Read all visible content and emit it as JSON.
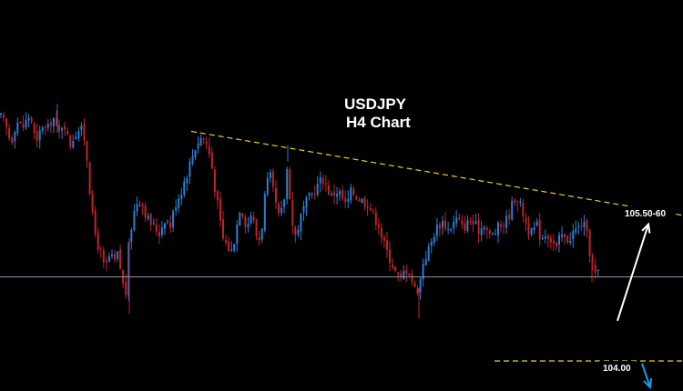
{
  "chart_data": {
    "type": "candlestick",
    "title": "USDJPY",
    "subtitle": "H4 Chart",
    "symbol": "USDJPY",
    "timeframe": "H4",
    "background": "#000000",
    "colors": {
      "up_candle": "#2a7fd4",
      "down_candle": "#c0232b",
      "trendline": "#e6d21e",
      "support_line": "#e6d21e",
      "current_price_line": "#8a96a8",
      "projection_arrow_up": "#ffffff",
      "projection_arrow_down": "#1e9be6",
      "label_background": "#000000"
    },
    "grid": false,
    "y_range": [
      103.75,
      106.4
    ],
    "current_price": 104.67,
    "close_path": [
      [
        0,
        105.95
      ],
      [
        6,
        105.88
      ],
      [
        12,
        105.74
      ],
      [
        18,
        105.92
      ],
      [
        25,
        105.86
      ],
      [
        33,
        105.97
      ],
      [
        40,
        105.71
      ],
      [
        46,
        105.89
      ],
      [
        52,
        105.83
      ],
      [
        58,
        105.96
      ],
      [
        64,
        105.79
      ],
      [
        70,
        105.93
      ],
      [
        76,
        105.71
      ],
      [
        82,
        105.81
      ],
      [
        88,
        105.86
      ],
      [
        94,
        105.75
      ],
      [
        98,
        105.42
      ],
      [
        102,
        105.12
      ],
      [
        106,
        104.96
      ],
      [
        110,
        104.88
      ],
      [
        115,
        104.72
      ],
      [
        120,
        104.83
      ],
      [
        126,
        104.79
      ],
      [
        130,
        104.86
      ],
      [
        134,
        104.64
      ],
      [
        138,
        104.52
      ],
      [
        142,
        104.98
      ],
      [
        147,
        105.18
      ],
      [
        152,
        105.31
      ],
      [
        157,
        105.24
      ],
      [
        163,
        105.12
      ],
      [
        169,
        105.07
      ],
      [
        175,
        105.02
      ],
      [
        181,
        105.14
      ],
      [
        187,
        105.08
      ],
      [
        193,
        105.26
      ],
      [
        199,
        105.36
      ],
      [
        205,
        105.49
      ],
      [
        210,
        105.61
      ],
      [
        216,
        105.74
      ],
      [
        222,
        105.79
      ],
      [
        228,
        105.71
      ],
      [
        232,
        105.58
      ],
      [
        236,
        105.38
      ],
      [
        240,
        105.19
      ],
      [
        244,
        104.99
      ],
      [
        249,
        104.92
      ],
      [
        254,
        104.87
      ],
      [
        259,
        105.03
      ],
      [
        263,
        105.23
      ],
      [
        267,
        105.18
      ],
      [
        271,
        105.06
      ],
      [
        276,
        105.19
      ],
      [
        281,
        105.01
      ],
      [
        286,
        104.96
      ],
      [
        291,
        105.33
      ],
      [
        296,
        105.49
      ],
      [
        301,
        105.31
      ],
      [
        306,
        105.14
      ],
      [
        311,
        105.22
      ],
      [
        316,
        105.59
      ],
      [
        320,
        105.12
      ],
      [
        324,
        104.99
      ],
      [
        328,
        105.09
      ],
      [
        333,
        105.21
      ],
      [
        338,
        105.28
      ],
      [
        343,
        105.33
      ],
      [
        348,
        105.39
      ],
      [
        354,
        105.46
      ],
      [
        359,
        105.39
      ],
      [
        364,
        105.31
      ],
      [
        369,
        105.36
      ],
      [
        374,
        105.33
      ],
      [
        380,
        105.23
      ],
      [
        386,
        105.36
      ],
      [
        392,
        105.31
      ],
      [
        398,
        105.28
      ],
      [
        404,
        105.26
      ],
      [
        410,
        105.16
      ],
      [
        416,
        105.09
      ],
      [
        420,
        104.96
      ],
      [
        425,
        104.87
      ],
      [
        430,
        104.79
      ],
      [
        435,
        104.69
      ],
      [
        440,
        104.64
      ],
      [
        445,
        104.74
      ],
      [
        450,
        104.71
      ],
      [
        455,
        104.57
      ],
      [
        460,
        104.58
      ],
      [
        465,
        104.81
      ],
      [
        469,
        104.86
      ],
      [
        473,
        104.93
      ],
      [
        477,
        105.03
      ],
      [
        482,
        105.09
      ],
      [
        487,
        105.11
      ],
      [
        492,
        105.05
      ],
      [
        497,
        105.09
      ],
      [
        502,
        105.14
      ],
      [
        507,
        105.06
      ],
      [
        512,
        105.09
      ],
      [
        517,
        105.12
      ],
      [
        522,
        105.07
      ],
      [
        527,
        105.04
      ],
      [
        532,
        105.11
      ],
      [
        537,
        104.99
      ],
      [
        542,
        105.01
      ],
      [
        547,
        105.06
      ],
      [
        552,
        105.09
      ],
      [
        557,
        105.13
      ],
      [
        562,
        105.24
      ],
      [
        566,
        105.31
      ],
      [
        570,
        105.26
      ],
      [
        574,
        105.19
      ],
      [
        579,
        105.06
      ],
      [
        584,
        105.01
      ],
      [
        589,
        105.09
      ],
      [
        594,
        104.98
      ],
      [
        600,
        105.03
      ],
      [
        606,
        104.96
      ],
      [
        611,
        104.89
      ],
      [
        616,
        105.01
      ],
      [
        621,
        104.96
      ],
      [
        626,
        104.99
      ],
      [
        631,
        105.04
      ],
      [
        636,
        105.06
      ],
      [
        640,
        105.11
      ],
      [
        644,
        105.01
      ],
      [
        648,
        104.86
      ],
      [
        652,
        104.71
      ],
      [
        655,
        104.67
      ],
      [
        658,
        104.71
      ]
    ],
    "annotations": [
      {
        "type": "trendline",
        "role": "descending resistance",
        "x": [
          210,
          750
        ],
        "y": [
          105.83,
          105.16
        ],
        "style": "dashed"
      },
      {
        "type": "horizontal_line",
        "role": "support target",
        "y": 104.0,
        "x_start": 543,
        "style": "dashed"
      },
      {
        "type": "horizontal_line",
        "role": "current price",
        "y": 104.67
      },
      {
        "type": "arrow",
        "direction": "up",
        "x": [
          678,
          712
        ],
        "y": [
          104.32,
          105.09
        ]
      },
      {
        "type": "arrow",
        "direction": "down",
        "x": [
          705,
          714
        ],
        "y": [
          103.98,
          103.79
        ]
      }
    ],
    "level_labels": {
      "resistance": "105.50-60",
      "support": "104.00"
    }
  }
}
